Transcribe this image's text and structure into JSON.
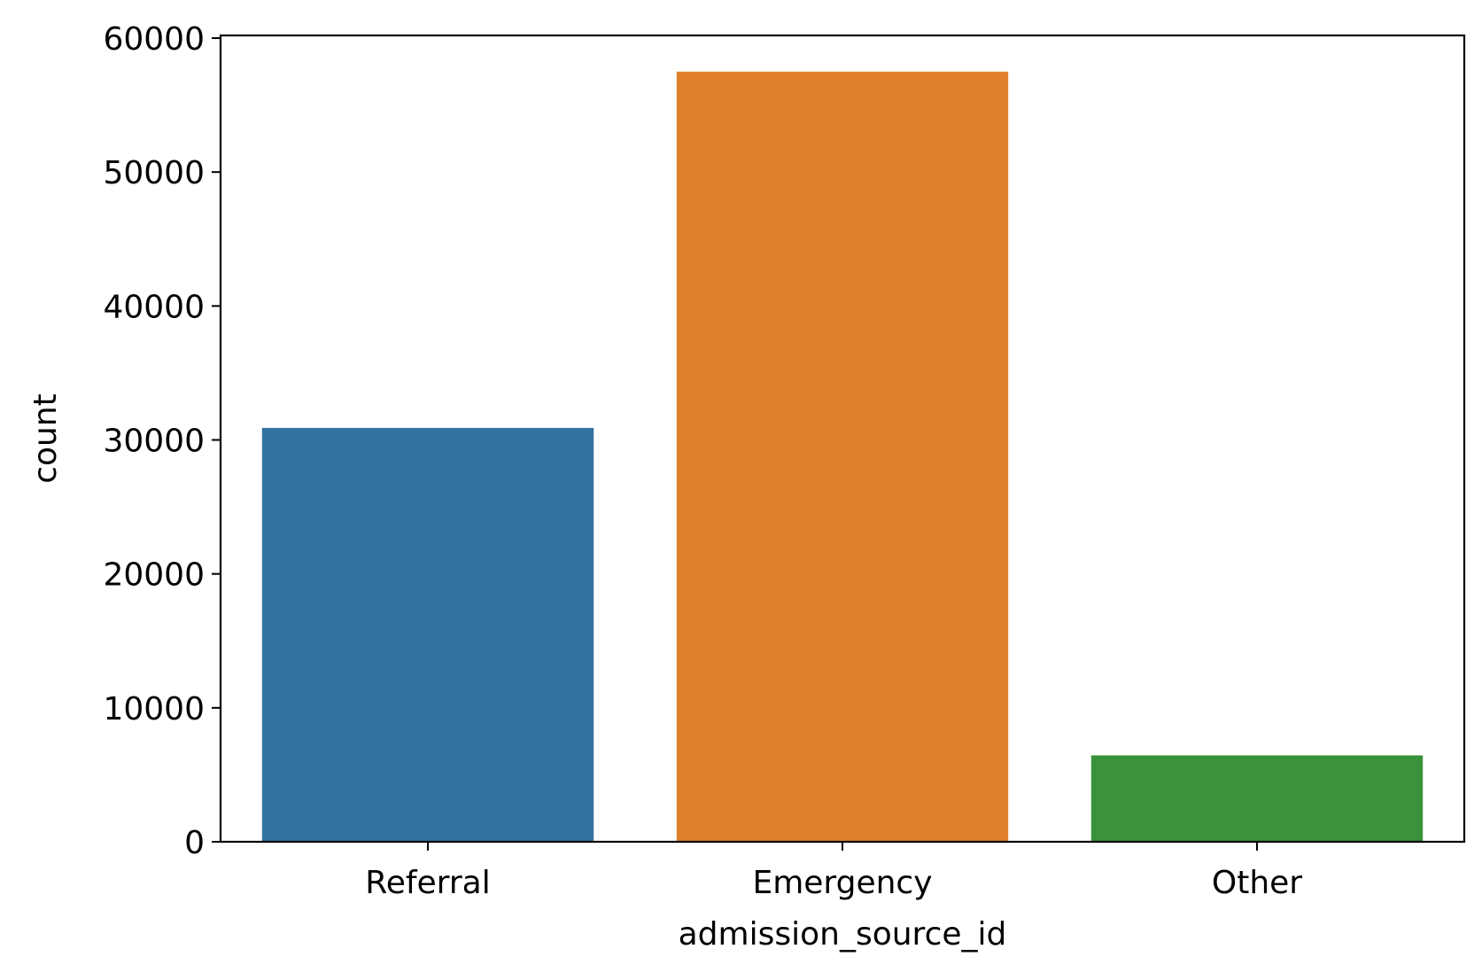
{
  "chart_data": {
    "type": "bar",
    "title": "",
    "xlabel": "admission_source_id",
    "ylabel": "count",
    "categories": [
      "Referral",
      "Emergency",
      "Other"
    ],
    "values": [
      30900,
      57500,
      6450
    ],
    "colors": [
      "#3274a1",
      "#e1812c",
      "#3a923a"
    ],
    "ylim": [
      0,
      60200
    ],
    "yticks": [
      0,
      10000,
      20000,
      30000,
      40000,
      50000,
      60000
    ],
    "grid": false,
    "legend": "none"
  }
}
